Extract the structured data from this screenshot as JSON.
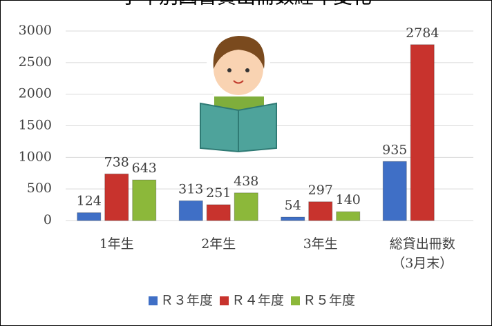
{
  "chart_data": {
    "type": "bar",
    "title": "学年別図書貸出冊数経年変化",
    "categories": [
      "1年生",
      "2年生",
      "3年生",
      "総貸出冊数\n（3月末）"
    ],
    "series": [
      {
        "name": "Ｒ３年度",
        "color": "#3f6fc6",
        "values": [
          124,
          313,
          54,
          935
        ]
      },
      {
        "name": "Ｒ４年度",
        "color": "#c8332d",
        "values": [
          738,
          251,
          297,
          2784
        ]
      },
      {
        "name": "Ｒ５年度",
        "color": "#8cb83a",
        "values": [
          643,
          438,
          140,
          null
        ]
      }
    ],
    "ylim": [
      0,
      3000
    ],
    "yticks": [
      0,
      500,
      1000,
      1500,
      2000,
      2500,
      3000
    ],
    "grid": true,
    "legend": "bottom"
  }
}
